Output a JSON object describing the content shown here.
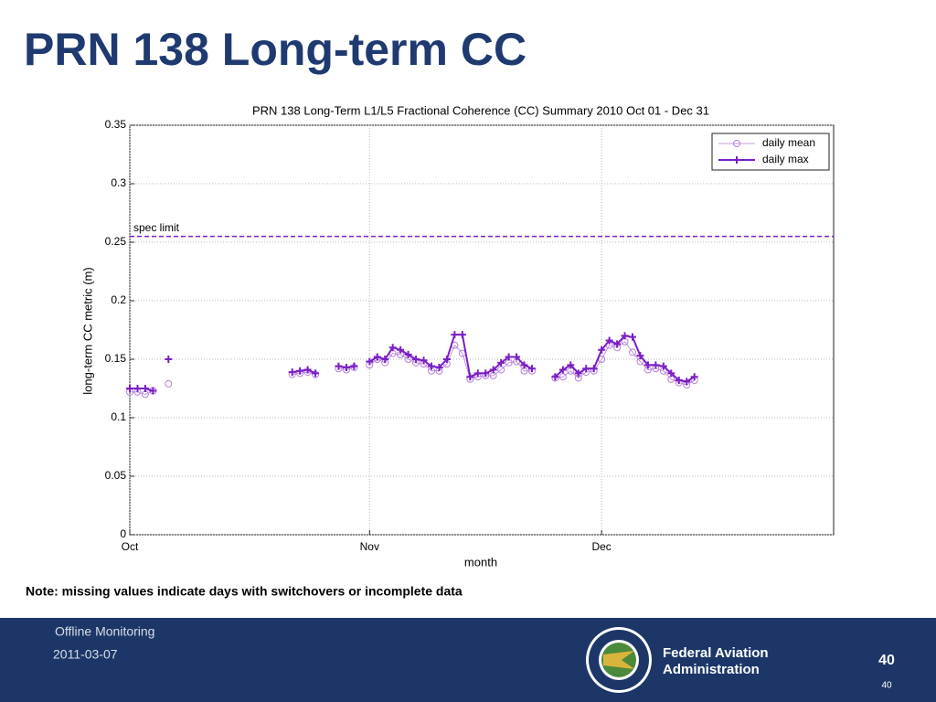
{
  "slide": {
    "title": "PRN 138 Long-term CC",
    "note": "Note: missing values indicate days with switchovers or incomplete data",
    "footer": {
      "section": "Offline Monitoring",
      "date": "2011-03-07",
      "org_line1": "Federal Aviation",
      "org_line2": "Administration",
      "page_number": "40",
      "page_number_small": "40"
    }
  },
  "chart_data": {
    "type": "line",
    "title": "PRN 138 Long-Term L1/L5 Fractional Coherence (CC) Summary 2010 Oct 01 - Dec 31",
    "xlabel": "month",
    "ylabel": "long-term CC metric (m)",
    "x": [
      0,
      1,
      2,
      3,
      4,
      5,
      6,
      7,
      8,
      9,
      10,
      11,
      12,
      13,
      14,
      15,
      16,
      17,
      18,
      19,
      20,
      21,
      22,
      23,
      24,
      25,
      26,
      27,
      28,
      29,
      30,
      31,
      32,
      33,
      34,
      35,
      36,
      37,
      38,
      39,
      40,
      41,
      42,
      43,
      44,
      45,
      46,
      47,
      48,
      49,
      50,
      51,
      52,
      53,
      54,
      55,
      56,
      57,
      58,
      59,
      60,
      61,
      62,
      63,
      64,
      65,
      66,
      67,
      68,
      69,
      70,
      71,
      72,
      73
    ],
    "xlim": [
      0,
      91
    ],
    "xticks": [
      {
        "value": 0,
        "label": "Oct"
      },
      {
        "value": 31,
        "label": "Nov"
      },
      {
        "value": 61,
        "label": "Dec"
      }
    ],
    "ylim": [
      0,
      0.35
    ],
    "yticks": [
      0,
      0.05,
      0.1,
      0.15,
      0.2,
      0.25,
      0.3,
      0.35
    ],
    "grid": true,
    "legend": "upper right",
    "spec_limit": {
      "label": "spec limit",
      "value": 0.255,
      "color": "#7b1fd0"
    },
    "series": [
      {
        "name": "daily mean",
        "color": "#b57fdc",
        "marker": "circle",
        "values": [
          0.122,
          0.122,
          0.12,
          0.123,
          null,
          0.129,
          null,
          null,
          null,
          null,
          null,
          null,
          null,
          null,
          null,
          null,
          null,
          null,
          null,
          null,
          null,
          0.137,
          0.138,
          0.139,
          0.137,
          null,
          null,
          0.142,
          0.141,
          0.143,
          null,
          0.145,
          0.15,
          0.147,
          0.155,
          0.154,
          0.15,
          0.147,
          0.146,
          0.14,
          0.14,
          0.146,
          0.162,
          0.155,
          0.133,
          0.135,
          0.136,
          0.136,
          0.141,
          0.147,
          0.148,
          0.14,
          0.14,
          null,
          null,
          0.134,
          0.135,
          0.14,
          0.134,
          0.139,
          0.14,
          0.15,
          0.162,
          0.16,
          0.165,
          0.156,
          0.148,
          0.141,
          0.142,
          0.14,
          0.133,
          0.13,
          0.128,
          0.132
        ]
      },
      {
        "name": "daily max",
        "color": "#7a1fc4",
        "marker": "plus",
        "values": [
          0.125,
          0.125,
          0.125,
          0.123,
          null,
          0.15,
          null,
          null,
          null,
          null,
          null,
          null,
          null,
          null,
          null,
          null,
          null,
          null,
          null,
          null,
          null,
          0.139,
          0.14,
          0.141,
          0.138,
          null,
          null,
          0.144,
          0.143,
          0.144,
          null,
          0.148,
          0.152,
          0.15,
          0.16,
          0.158,
          0.154,
          0.15,
          0.149,
          0.144,
          0.143,
          0.15,
          0.171,
          0.171,
          0.135,
          0.138,
          0.138,
          0.141,
          0.147,
          0.152,
          0.152,
          0.145,
          0.142,
          null,
          null,
          0.135,
          0.141,
          0.145,
          0.138,
          0.142,
          0.142,
          0.158,
          0.166,
          0.163,
          0.17,
          0.169,
          0.153,
          0.145,
          0.145,
          0.144,
          0.138,
          0.132,
          0.131,
          0.135
        ]
      }
    ]
  }
}
